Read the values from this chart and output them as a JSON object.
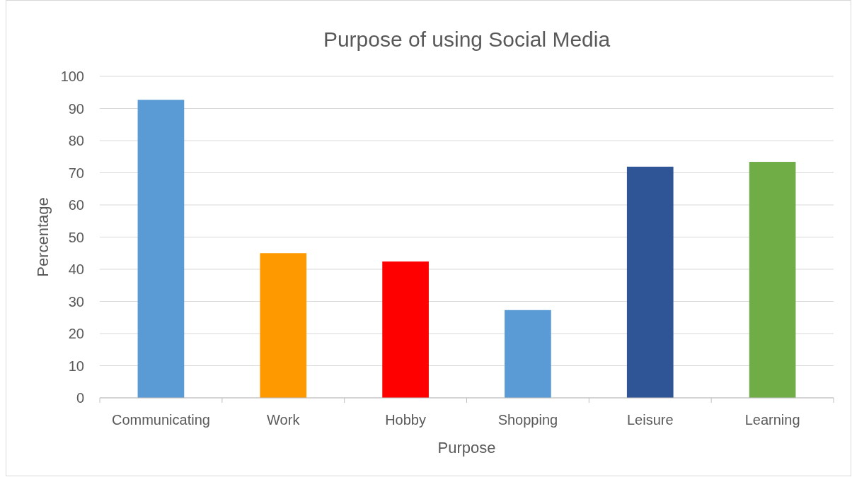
{
  "chart_data": {
    "type": "bar",
    "title": "Purpose of using Social Media",
    "xlabel": "Purpose",
    "ylabel": "Percentage",
    "categories": [
      "Communicating",
      "Work",
      "Hobby",
      "Shopping",
      "Leisure",
      "Learning"
    ],
    "values": [
      92.7,
      45,
      42.4,
      27.3,
      71.9,
      73.4
    ],
    "colors": [
      "#5b9bd5",
      "#ff9900",
      "#ff0000",
      "#5b9bd5",
      "#2f5597",
      "#70ad47"
    ],
    "ylim": [
      0,
      100
    ],
    "yticks": [
      0,
      10,
      20,
      30,
      40,
      50,
      60,
      70,
      80,
      90,
      100
    ],
    "grid": "y"
  }
}
